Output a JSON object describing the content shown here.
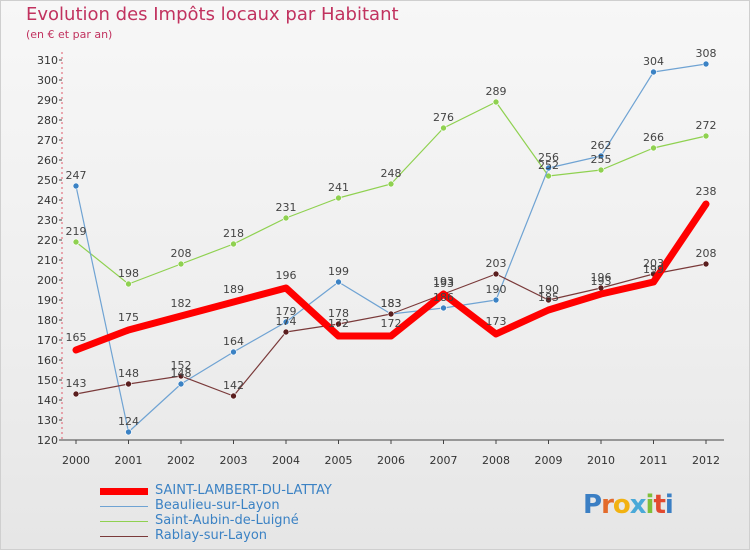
{
  "header": {
    "title": "Evolution des Impôts locaux par Habitant",
    "subtitle": "(en € et par an)"
  },
  "brand": {
    "parts": [
      "P",
      "r",
      "o",
      "x",
      "i",
      "t",
      "i"
    ]
  },
  "chart_data": {
    "type": "line",
    "title": "Evolution des Impôts locaux par Habitant",
    "subtitle": "(en € et par an)",
    "xlabel": "",
    "ylabel": "",
    "x": [
      "2000",
      "2001",
      "2002",
      "2003",
      "2004",
      "2005",
      "2006",
      "2007",
      "2008",
      "2009",
      "2010",
      "2011",
      "2012"
    ],
    "ylim": [
      120,
      310
    ],
    "yticks": [
      120,
      130,
      140,
      150,
      160,
      170,
      180,
      190,
      200,
      210,
      220,
      230,
      240,
      250,
      260,
      270,
      280,
      290,
      300,
      310
    ],
    "grid": false,
    "legend_position": "bottom-left",
    "series": [
      {
        "name": "Saint-Aubin-de-Luigné",
        "color": "#8fd150",
        "dot": "#8fd150",
        "width": 1.2,
        "values": [
          219,
          198,
          208,
          218,
          231,
          241,
          248,
          276,
          289,
          252,
          255,
          266,
          272
        ]
      },
      {
        "name": "Beaulieu-sur-Layon",
        "color": "#6fa3d3",
        "dot": "#3b82c4",
        "width": 1.2,
        "values": [
          247,
          124,
          148,
          164,
          179,
          199,
          183,
          186,
          190,
          256,
          262,
          304,
          308
        ]
      },
      {
        "name": "Rablay-sur-Layon",
        "color": "#7a3a3a",
        "dot": "#5a1e1e",
        "width": 1.2,
        "values": [
          143,
          148,
          152,
          142,
          174,
          178,
          183,
          193,
          203,
          190,
          196,
          203,
          208
        ]
      },
      {
        "name": "SAINT-LAMBERT-DU-LATTAY",
        "color": "#ff0000",
        "dot": "#ff0000",
        "width": 7,
        "values": [
          165,
          175,
          182,
          189,
          196,
          172,
          172,
          193,
          173,
          185,
          193,
          199,
          238
        ]
      }
    ]
  }
}
